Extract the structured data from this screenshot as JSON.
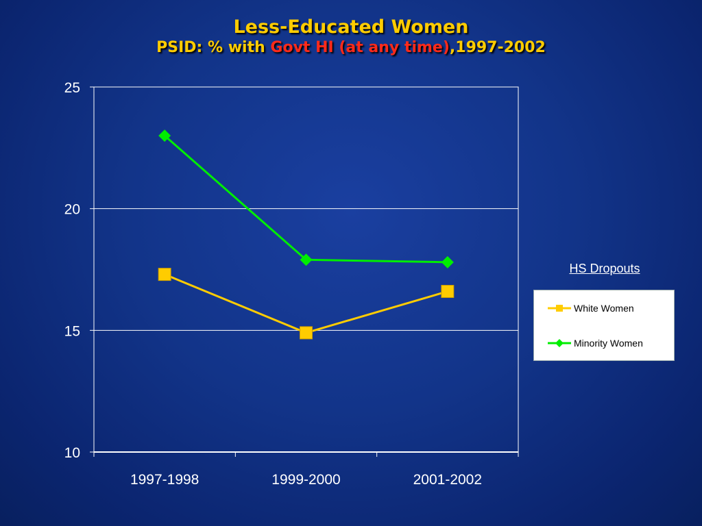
{
  "title": {
    "line1": "Less-Educated Women",
    "line2_prefix": "PSID: % with ",
    "line2_highlight": "Govt HI (at any time)",
    "line2_suffix": ",1997-2002"
  },
  "colors": {
    "title": "#ffcc00",
    "highlight": "#ff2a1a",
    "white_women": "#ffcc00",
    "minority_women": "#00ee00"
  },
  "chart_data": {
    "type": "line",
    "categories": [
      "1997-1998",
      "1999-2000",
      "2001-2002"
    ],
    "series": [
      {
        "name": "White Women",
        "values": [
          17.3,
          14.9,
          16.6
        ],
        "color": "#ffcc00",
        "marker": "square"
      },
      {
        "name": "Minority Women",
        "values": [
          23.0,
          17.9,
          17.8
        ],
        "color": "#00ee00",
        "marker": "diamond"
      }
    ],
    "ylim": [
      10,
      25
    ],
    "yticks": [
      10,
      15,
      20,
      25
    ],
    "grid": true,
    "legend_title": "HS Dropouts",
    "legend_position": "right"
  }
}
